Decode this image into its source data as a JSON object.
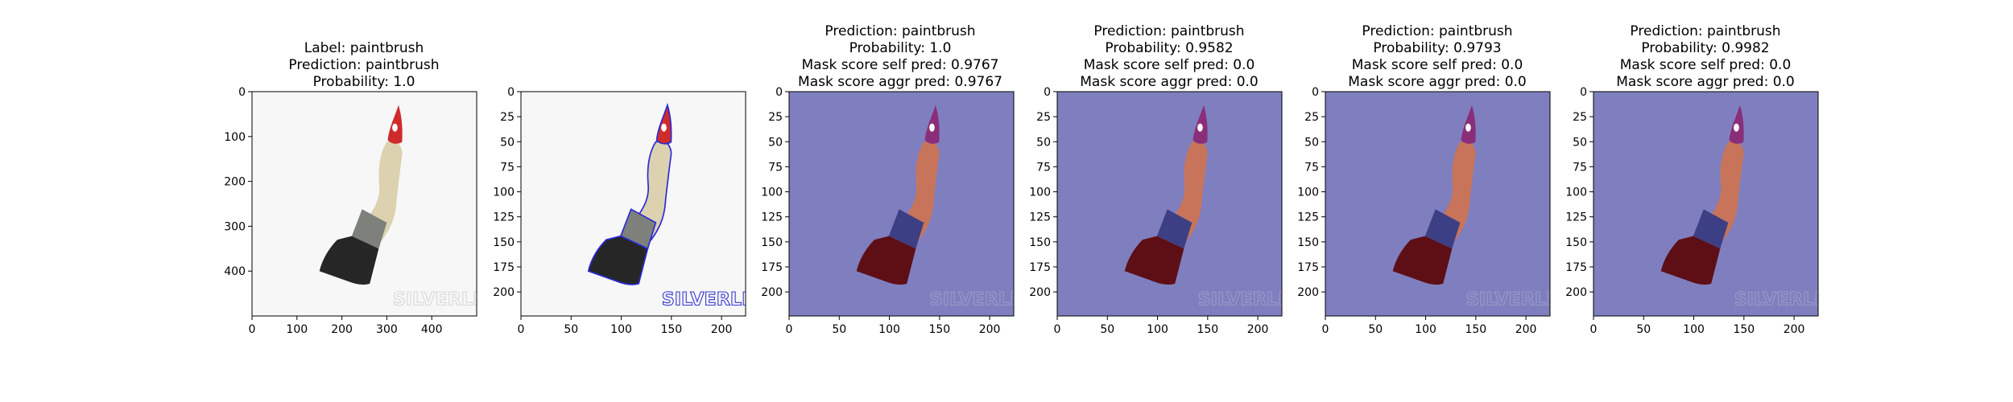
{
  "figure": {
    "background": "#ffffff",
    "mask_overlay_color": "#7f7fbf"
  },
  "panels": [
    {
      "title_lines": [
        "Label: paintbrush",
        "Prediction: paintbrush",
        "Probability: 1.0"
      ]
    },
    {
      "title_lines": []
    },
    {
      "title_lines": [
        "Prediction: paintbrush",
        "Probability: 1.0",
        "Mask score self pred: 0.9767",
        "Mask score aggr pred: 0.9767"
      ]
    },
    {
      "title_lines": [
        "Prediction: paintbrush",
        "Probability: 0.9582",
        "Mask score self pred: 0.0",
        "Mask score aggr pred: 0.0"
      ]
    },
    {
      "title_lines": [
        "Prediction: paintbrush",
        "Probability: 0.9793",
        "Mask score self pred: 0.0",
        "Mask score aggr pred: 0.0"
      ]
    },
    {
      "title_lines": [
        "Prediction: paintbrush",
        "Probability: 0.9982",
        "Mask score self pred: 0.0",
        "Mask score aggr pred: 0.0"
      ]
    }
  ],
  "watermark": {
    "text": "SILVERLINE"
  },
  "chart_data": [
    {
      "type": "image",
      "title": "Label: paintbrush\nPrediction: paintbrush\nProbability: 1.0",
      "xlim": [
        0,
        500
      ],
      "ylim": [
        500,
        0
      ],
      "x_ticks": [
        0,
        100,
        200,
        300,
        400
      ],
      "y_ticks": [
        0,
        100,
        200,
        300,
        400
      ],
      "overlay": "none"
    },
    {
      "type": "image",
      "title": "",
      "xlim": [
        0,
        224
      ],
      "ylim": [
        224,
        0
      ],
      "x_ticks": [
        0,
        50,
        100,
        150,
        200
      ],
      "y_ticks": [
        0,
        25,
        50,
        75,
        100,
        125,
        150,
        175,
        200
      ],
      "overlay": "contour"
    },
    {
      "type": "image",
      "title": "Prediction: paintbrush\nProbability: 1.0\nMask score self pred: 0.9767\nMask score aggr pred: 0.9767",
      "xlim": [
        0,
        224
      ],
      "ylim": [
        224,
        0
      ],
      "x_ticks": [
        0,
        50,
        100,
        150,
        200
      ],
      "y_ticks": [
        0,
        25,
        50,
        75,
        100,
        125,
        150,
        175,
        200
      ],
      "overlay": "mask",
      "probability": 1.0,
      "mask_score_self_pred": 0.9767,
      "mask_score_aggr_pred": 0.9767
    },
    {
      "type": "image",
      "title": "Prediction: paintbrush\nProbability: 0.9582\nMask score self pred: 0.0\nMask score aggr pred: 0.0",
      "xlim": [
        0,
        224
      ],
      "ylim": [
        224,
        0
      ],
      "x_ticks": [
        0,
        50,
        100,
        150,
        200
      ],
      "y_ticks": [
        0,
        25,
        50,
        75,
        100,
        125,
        150,
        175,
        200
      ],
      "overlay": "mask",
      "probability": 0.9582,
      "mask_score_self_pred": 0.0,
      "mask_score_aggr_pred": 0.0
    },
    {
      "type": "image",
      "title": "Prediction: paintbrush\nProbability: 0.9793\nMask score self pred: 0.0\nMask score aggr pred: 0.0",
      "xlim": [
        0,
        224
      ],
      "ylim": [
        224,
        0
      ],
      "x_ticks": [
        0,
        50,
        100,
        150,
        200
      ],
      "y_ticks": [
        0,
        25,
        50,
        75,
        100,
        125,
        150,
        175,
        200
      ],
      "overlay": "mask",
      "probability": 0.9793,
      "mask_score_self_pred": 0.0,
      "mask_score_aggr_pred": 0.0
    },
    {
      "type": "image",
      "title": "Prediction: paintbrush\nProbability: 0.9982\nMask score self pred: 0.0\nMask score aggr pred: 0.0",
      "xlim": [
        0,
        224
      ],
      "ylim": [
        224,
        0
      ],
      "x_ticks": [
        0,
        50,
        100,
        150,
        200
      ],
      "y_ticks": [
        0,
        25,
        50,
        75,
        100,
        125,
        150,
        175,
        200
      ],
      "overlay": "mask",
      "probability": 0.9982,
      "mask_score_self_pred": 0.0,
      "mask_score_aggr_pred": 0.0
    }
  ]
}
